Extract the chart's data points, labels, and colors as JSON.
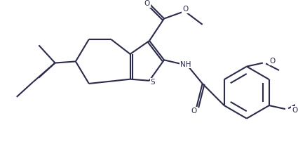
{
  "bg_color": "#ffffff",
  "line_color": "#2b2b4b",
  "line_width": 1.5,
  "figsize": [
    4.25,
    2.22
  ],
  "dpi": 100,
  "xlim": [
    0,
    10
  ],
  "ylim": [
    0,
    5.2
  ]
}
